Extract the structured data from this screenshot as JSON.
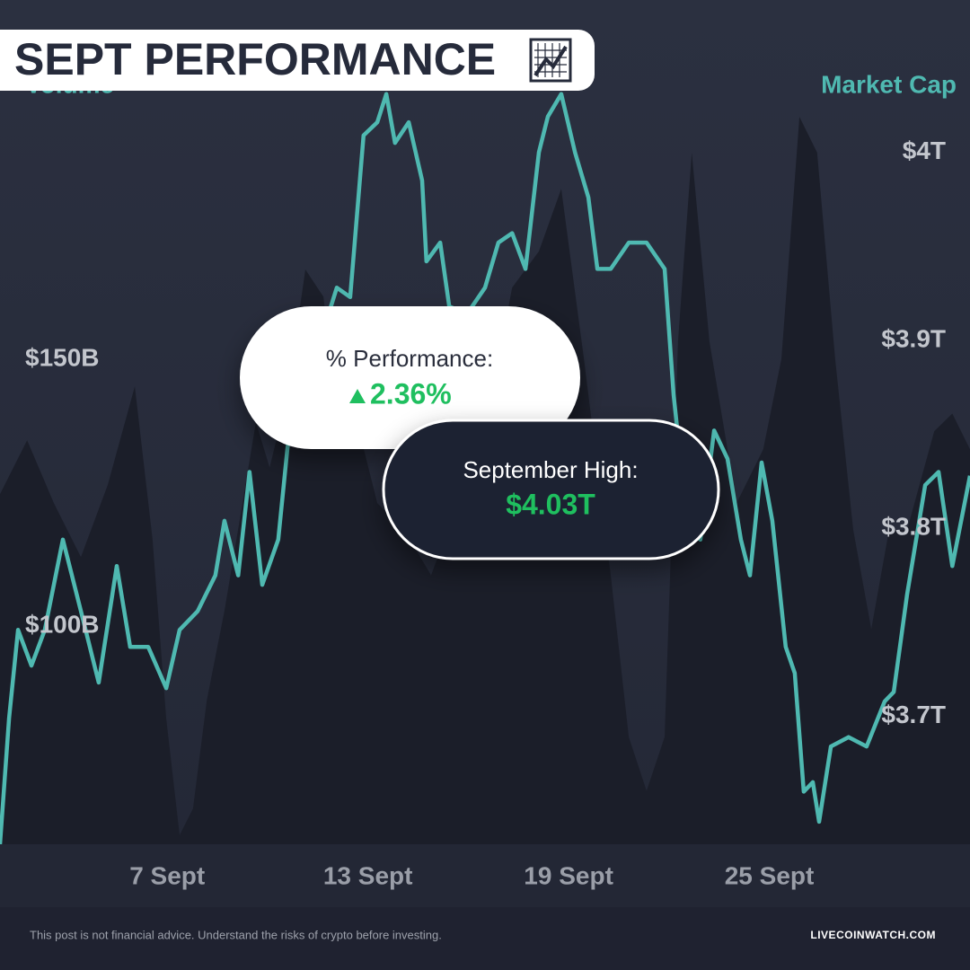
{
  "chart_data": {
    "type": "line",
    "title": "SEPT PERFORMANCE",
    "y_label": "Volume",
    "y2_label": "Market Cap",
    "xlim": [
      2,
      31
    ],
    "xticks": [
      {
        "value": 7,
        "label": "7 Sept"
      },
      {
        "value": 13,
        "label": "13 Sept"
      },
      {
        "value": 19,
        "label": "19 Sept"
      },
      {
        "value": 25,
        "label": "25 Sept"
      }
    ],
    "ylim": [
      59.1,
      217.3
    ],
    "yticks": [
      {
        "value": 100,
        "label": "$100B"
      },
      {
        "value": 150,
        "label": "$150B"
      }
    ],
    "y2lim": [
      3.632,
      4.081
    ],
    "y2ticks": [
      {
        "value": 3.7,
        "label": "$3.7T"
      },
      {
        "value": 3.8,
        "label": "$3.8T"
      },
      {
        "value": 3.9,
        "label": "$3.9T"
      },
      {
        "value": 4,
        "label": "$4T"
      }
    ],
    "grid": false,
    "series": [
      {
        "style": "area",
        "color": "#1b1e29",
        "x": [
          2.0,
          2.81,
          3.61,
          4.42,
          5.22,
          6.03,
          6.56,
          6.97,
          7.37,
          7.77,
          8.18,
          8.71,
          9.25,
          9.65,
          10.06,
          10.59,
          11.13,
          11.67,
          12.2,
          12.74,
          13.28,
          14.08,
          14.89,
          15.69,
          16.5,
          17.31,
          18.11,
          18.78,
          19.46,
          20.26,
          20.8,
          21.33,
          21.87,
          22.27,
          22.68,
          23.21,
          24.02,
          24.82,
          25.36,
          25.9,
          26.43,
          26.97,
          27.51,
          28.05,
          28.58,
          29.12,
          29.93,
          30.47,
          31.0
        ],
        "values": [
          124.7,
          134.8,
          123.0,
          112.9,
          126.4,
          144.9,
          116.3,
          82.6,
          60.8,
          65.8,
          86.0,
          102.8,
          123.0,
          138.2,
          129.7,
          143.2,
          166.8,
          161.7,
          133.1,
          136.5,
          123.0,
          118.0,
          109.5,
          123.0,
          136.5,
          163.4,
          170.2,
          181.9,
          150.0,
          109.5,
          79.2,
          69.1,
          79.2,
          153.3,
          188.7,
          153.3,
          123.0,
          133.1,
          150.0,
          195.4,
          188.7,
          150.0,
          118.0,
          99.4,
          118.0,
          118.0,
          136.5,
          139.8,
          133.1
        ]
      },
      {
        "style": "line",
        "axis": "y2",
        "color": "#4fb9b1",
        "x": [
          2.0,
          2.27,
          2.54,
          2.94,
          3.34,
          3.88,
          4.42,
          4.95,
          5.49,
          5.89,
          6.43,
          6.97,
          7.37,
          7.91,
          8.44,
          8.71,
          9.12,
          9.46,
          9.84,
          10.32,
          10.59,
          10.86,
          11.4,
          12.07,
          12.47,
          12.87,
          13.28,
          13.55,
          13.81,
          14.22,
          14.62,
          14.75,
          15.16,
          15.43,
          15.96,
          16.5,
          16.9,
          17.31,
          17.71,
          18.11,
          18.38,
          18.78,
          19.19,
          19.59,
          19.86,
          20.26,
          20.8,
          21.33,
          21.87,
          22.14,
          22.54,
          22.94,
          23.35,
          23.75,
          24.15,
          24.42,
          24.77,
          25.09,
          25.49,
          25.76,
          26.03,
          26.3,
          26.49,
          26.84,
          27.37,
          27.91,
          28.45,
          28.72,
          29.12,
          29.66,
          30.06,
          30.47,
          31.0
        ],
        "values": [
          3.632,
          3.699,
          3.746,
          3.727,
          3.746,
          3.794,
          3.756,
          3.718,
          3.78,
          3.737,
          3.737,
          3.715,
          3.746,
          3.756,
          3.775,
          3.804,
          3.775,
          3.83,
          3.77,
          3.794,
          3.842,
          3.88,
          3.89,
          3.928,
          3.923,
          4.009,
          4.016,
          4.031,
          4.005,
          4.016,
          3.985,
          3.942,
          3.952,
          3.918,
          3.914,
          3.928,
          3.952,
          3.957,
          3.938,
          4.0,
          4.019,
          4.031,
          4.0,
          3.976,
          3.938,
          3.938,
          3.952,
          3.952,
          3.938,
          3.871,
          3.804,
          3.794,
          3.852,
          3.837,
          3.794,
          3.775,
          3.835,
          3.804,
          3.737,
          3.723,
          3.66,
          3.665,
          3.644,
          3.684,
          3.689,
          3.684,
          3.708,
          3.713,
          3.765,
          3.823,
          3.83,
          3.78,
          3.828
        ]
      }
    ],
    "annotations": [
      {
        "label": "% Performance:",
        "value": "2.36%"
      },
      {
        "label": "September High:",
        "value": "$4.03T"
      }
    ],
    "footer": {
      "disclaimer": "This post is not financial advice. Understand the risks of crypto before investing.",
      "brand": "LIVECOINWATCH.COM"
    }
  }
}
